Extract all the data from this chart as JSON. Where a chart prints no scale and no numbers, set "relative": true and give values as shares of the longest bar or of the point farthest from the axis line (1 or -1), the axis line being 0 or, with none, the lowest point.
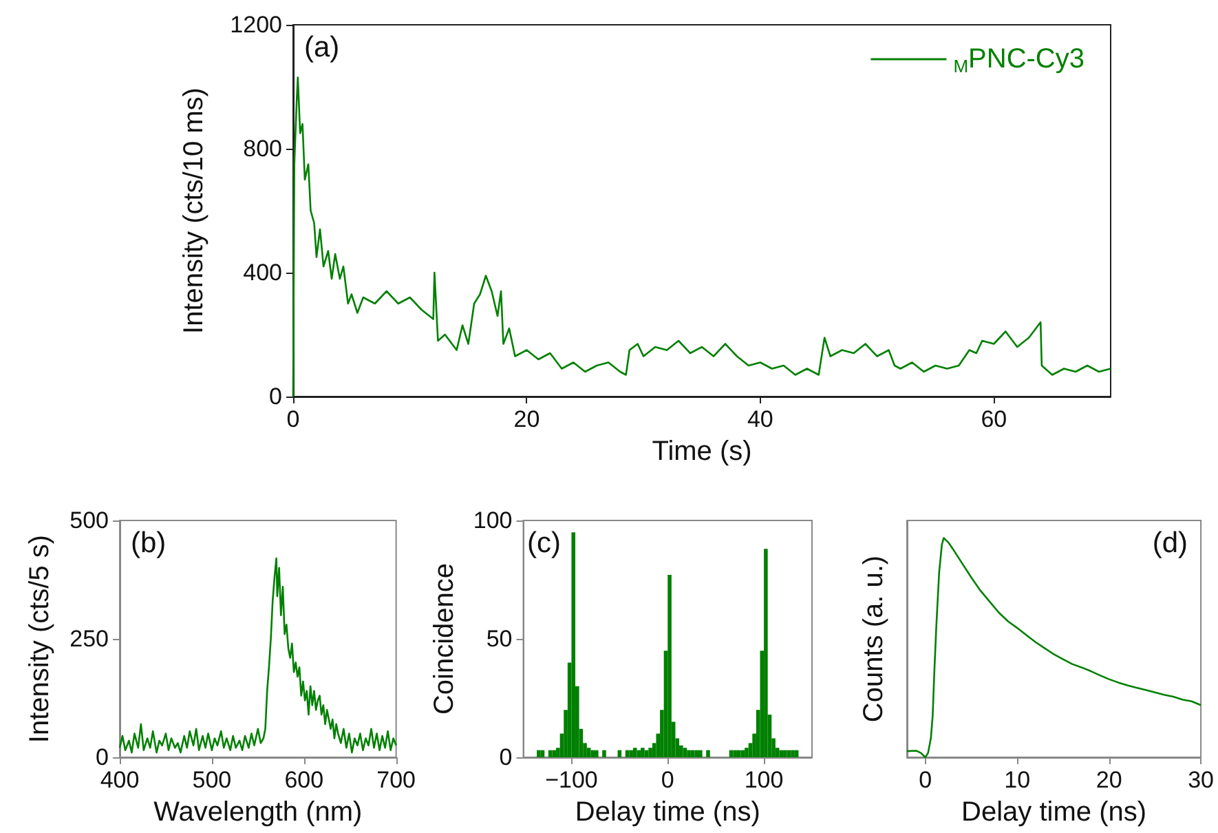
{
  "chart_data": [
    {
      "type": "line",
      "xlabel": "Time (s)",
      "ylabel": "Intensity (cts/10 ms)",
      "annotations": [
        "(a)"
      ],
      "legend": "top right",
      "marker": "none",
      "xlim": [
        0,
        70
      ],
      "xticks": [
        0,
        20,
        40,
        60
      ],
      "ylim": [
        0,
        1200
      ],
      "yticks": [
        0,
        400,
        800,
        1200
      ],
      "series": [
        {
          "name": "$_{M}$PNC-Cy3",
          "color": "#008000",
          "x": [
            0,
            0.1,
            0.3,
            0.4,
            0.6,
            0.8,
            1.0,
            1.3,
            1.5,
            1.8,
            2.0,
            2.3,
            2.6,
            3.0,
            3.3,
            3.6,
            4.0,
            4.3,
            4.7,
            5.0,
            5.5,
            6,
            7,
            8,
            9,
            10,
            11,
            12,
            12.1,
            12.4,
            13,
            14,
            14.5,
            15,
            15.5,
            16,
            16.5,
            17,
            17.5,
            17.8,
            18,
            18.5,
            19,
            20,
            21,
            22,
            23,
            24,
            25,
            26,
            27,
            28,
            28.5,
            28.8,
            29.5,
            30,
            31,
            32,
            33,
            34,
            35,
            36,
            37,
            38,
            39,
            40,
            41,
            42,
            43,
            44,
            45,
            45.5,
            46,
            47,
            48,
            49,
            50,
            51,
            51.5,
            52,
            53,
            54,
            55,
            56,
            57,
            57.9,
            58.5,
            59,
            60,
            61,
            62,
            63,
            64,
            64.1,
            65,
            66,
            67,
            68,
            69,
            70
          ],
          "values": [
            0,
            750,
            950,
            1030,
            850,
            880,
            700,
            750,
            600,
            560,
            450,
            540,
            420,
            470,
            380,
            460,
            380,
            420,
            300,
            330,
            270,
            320,
            300,
            340,
            300,
            320,
            280,
            250,
            400,
            180,
            200,
            150,
            230,
            170,
            300,
            330,
            390,
            340,
            260,
            340,
            170,
            220,
            130,
            150,
            120,
            140,
            90,
            110,
            80,
            100,
            110,
            80,
            70,
            150,
            170,
            130,
            160,
            150,
            180,
            140,
            160,
            130,
            170,
            130,
            100,
            110,
            90,
            100,
            70,
            90,
            70,
            190,
            130,
            150,
            140,
            170,
            130,
            150,
            100,
            90,
            110,
            80,
            100,
            90,
            100,
            150,
            140,
            180,
            170,
            210,
            160,
            190,
            240,
            100,
            70,
            90,
            80,
            100,
            80,
            90
          ]
        }
      ]
    },
    {
      "type": "line",
      "xlabel": "Wavelength (nm)",
      "ylabel": "Intensity (cts/5 s)",
      "annotations": [
        "(b)"
      ],
      "marker": "none",
      "xlim": [
        400,
        700
      ],
      "xticks": [
        400,
        500,
        600,
        700
      ],
      "ylim": [
        0,
        500
      ],
      "yticks": [
        0,
        250,
        500
      ],
      "series": [
        {
          "color": "#008000",
          "x": [
            400,
            403,
            406,
            410,
            413,
            416,
            420,
            423,
            426,
            430,
            433,
            436,
            440,
            443,
            446,
            450,
            453,
            456,
            460,
            463,
            466,
            470,
            473,
            476,
            480,
            483,
            486,
            490,
            493,
            496,
            500,
            503,
            506,
            510,
            513,
            516,
            520,
            523,
            526,
            530,
            533,
            536,
            540,
            543,
            546,
            550,
            553,
            556,
            558,
            560,
            562,
            564,
            566,
            568,
            570,
            571,
            573,
            575,
            577,
            579,
            581,
            583,
            585,
            587,
            589,
            591,
            593,
            595,
            597,
            599,
            601,
            603,
            605,
            607,
            609,
            611,
            613,
            615,
            617,
            619,
            621,
            623,
            625,
            627,
            629,
            631,
            633,
            635,
            637,
            640,
            643,
            646,
            649,
            652,
            655,
            658,
            661,
            664,
            667,
            670,
            673,
            676,
            679,
            682,
            685,
            688,
            691,
            694,
            697,
            700
          ],
          "values": [
            20,
            45,
            15,
            35,
            10,
            50,
            20,
            70,
            15,
            40,
            20,
            55,
            10,
            35,
            25,
            50,
            15,
            40,
            20,
            30,
            10,
            45,
            20,
            55,
            25,
            60,
            15,
            45,
            20,
            50,
            15,
            40,
            25,
            55,
            20,
            40,
            15,
            45,
            20,
            35,
            15,
            45,
            20,
            50,
            25,
            60,
            30,
            40,
            60,
            140,
            190,
            250,
            330,
            380,
            420,
            340,
            400,
            300,
            360,
            260,
            280,
            230,
            210,
            240,
            180,
            200,
            170,
            190,
            130,
            160,
            120,
            140,
            90,
            150,
            110,
            140,
            100,
            120,
            130,
            90,
            110,
            70,
            100,
            80,
            60,
            80,
            40,
            70,
            50,
            30,
            60,
            20,
            50,
            10,
            40,
            25,
            50,
            15,
            40,
            25,
            60,
            20,
            50,
            15,
            45,
            20,
            55,
            15,
            40,
            25
          ]
        }
      ]
    },
    {
      "type": "histogram",
      "xlabel": "Delay time (ns)",
      "ylabel": "Coincidence",
      "annotations": [
        "(c)"
      ],
      "color": "#008000",
      "xlim": [
        -150,
        150
      ],
      "xticks": [
        -100,
        0,
        100
      ],
      "ylim": [
        0,
        100
      ],
      "yticks": [
        0,
        50,
        100
      ],
      "bins": [
        -140,
        -136,
        -132,
        -128,
        -124,
        -120,
        -116,
        -112,
        -108,
        -104,
        -100,
        -96,
        -92,
        -88,
        -84,
        -80,
        -76,
        -72,
        -68,
        -64,
        -60,
        -56,
        -52,
        -48,
        -44,
        -40,
        -36,
        -32,
        -28,
        -24,
        -20,
        -16,
        -12,
        -8,
        -4,
        0,
        4,
        8,
        12,
        16,
        20,
        24,
        28,
        32,
        36,
        40,
        44,
        48,
        52,
        56,
        60,
        64,
        68,
        72,
        76,
        80,
        84,
        88,
        92,
        96,
        100,
        104,
        108,
        112,
        116,
        120,
        124,
        128,
        132,
        136,
        140
      ],
      "values": [
        0,
        3,
        3,
        0,
        3,
        3,
        4,
        10,
        20,
        40,
        95,
        30,
        12,
        6,
        4,
        3,
        3,
        0,
        3,
        0,
        0,
        0,
        3,
        0,
        3,
        3,
        4,
        3,
        4,
        3,
        4,
        6,
        10,
        20,
        45,
        77,
        15,
        8,
        5,
        4,
        3,
        3,
        3,
        3,
        0,
        3,
        0,
        0,
        0,
        0,
        0,
        3,
        3,
        3,
        3,
        4,
        6,
        10,
        20,
        45,
        88,
        18,
        8,
        4,
        3,
        3,
        3,
        3,
        3,
        0
      ]
    },
    {
      "type": "line",
      "xlabel": "Delay time (ns)",
      "ylabel": "Counts (a. u.)",
      "annotations": [
        "(d)"
      ],
      "relative": true,
      "tick_labels": "x",
      "marker": "none",
      "xlim": [
        -2,
        30
      ],
      "xticks": [
        0,
        10,
        20,
        30
      ],
      "series": [
        {
          "color": "#008000",
          "x": [
            -2,
            -1,
            -0.5,
            0,
            0.3,
            0.6,
            0.8,
            1.0,
            1.2,
            1.5,
            1.8,
            2.0,
            2.5,
            3,
            4,
            5,
            6,
            7,
            8,
            9,
            10,
            11,
            12,
            13,
            14,
            15,
            16,
            17,
            18,
            19,
            20,
            21,
            22,
            23,
            24,
            25,
            26,
            27,
            28,
            29,
            30
          ],
          "values": [
            0.028,
            0.03,
            0.02,
            0,
            0.02,
            0.086,
            0.19,
            0.41,
            0.6,
            0.84,
            0.97,
            1,
            0.98,
            0.95,
            0.885,
            0.82,
            0.76,
            0.71,
            0.66,
            0.62,
            0.59,
            0.557,
            0.525,
            0.497,
            0.47,
            0.447,
            0.425,
            0.41,
            0.393,
            0.374,
            0.356,
            0.341,
            0.328,
            0.317,
            0.307,
            0.296,
            0.285,
            0.276,
            0.263,
            0.255,
            0.238
          ]
        }
      ]
    }
  ]
}
